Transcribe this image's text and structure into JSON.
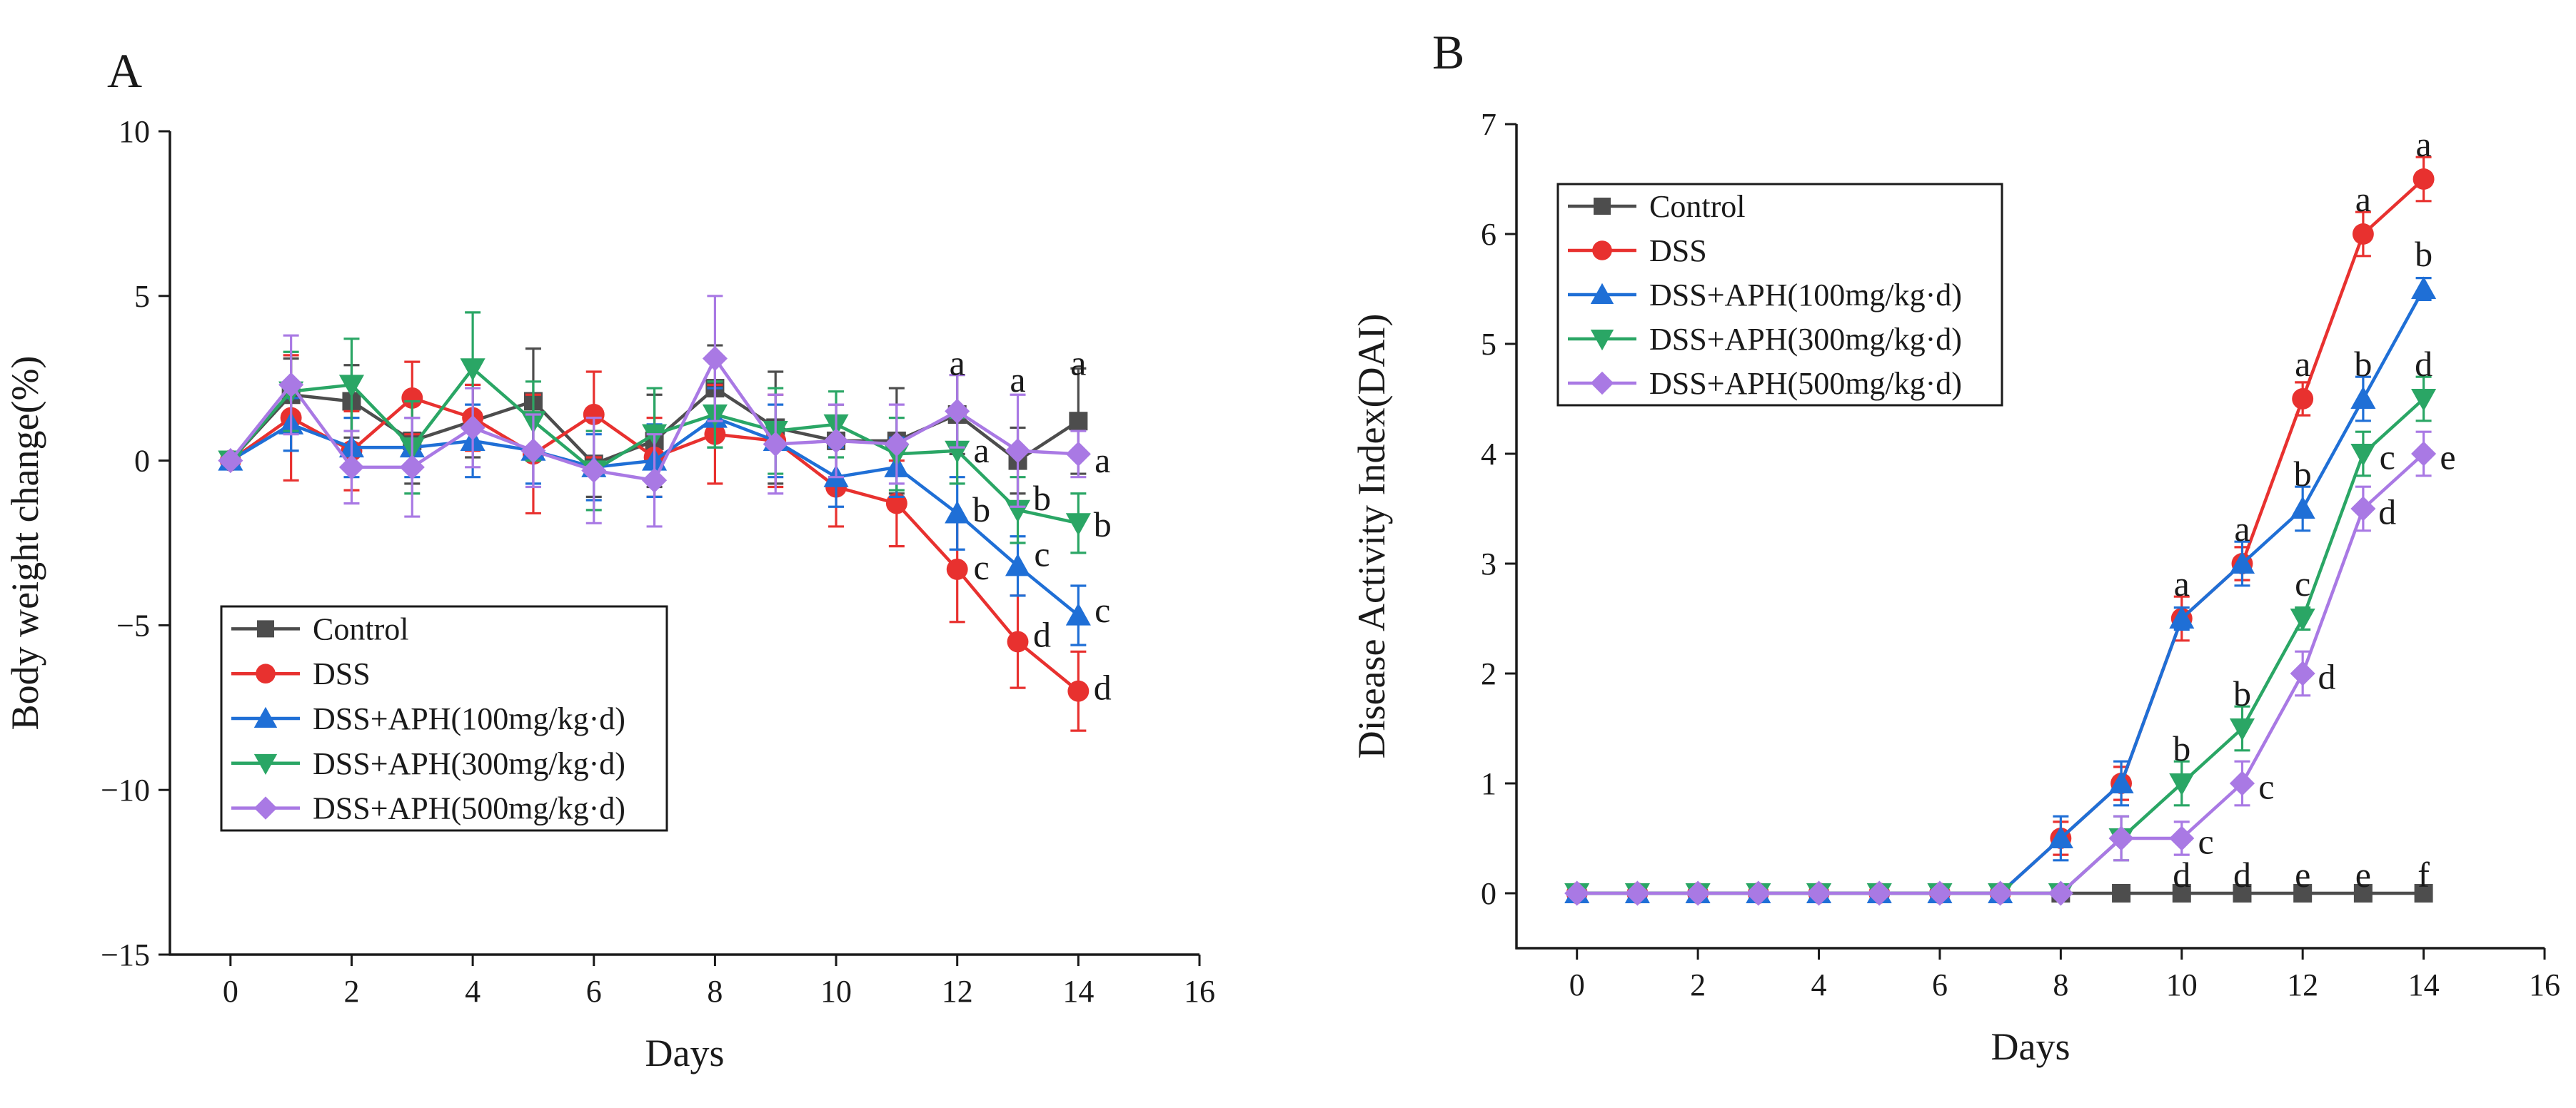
{
  "figure": {
    "colors": {
      "Control": "#4d4d4d",
      "DSS": "#e8312f",
      "DSS+APH(100mg/kg·d)": "#1f6fd6",
      "DSS+APH(300mg/kg·d)": "#2aa665",
      "DSS+APH(500mg/kg·d)": "#a979e4"
    },
    "markers": {
      "Control": "square",
      "DSS": "circle",
      "DSS+APH(100mg/kg·d)": "triangle-up",
      "DSS+APH(300mg/kg·d)": "triangle-down",
      "DSS+APH(500mg/kg·d)": "diamond"
    }
  },
  "chart_data": [
    {
      "panel": "A",
      "type": "line",
      "title": "",
      "xlabel": "Days",
      "ylabel": "Body weight change(%)",
      "xlim": [
        -1,
        16
      ],
      "ylim": [
        -15,
        10
      ],
      "xticks": [
        0,
        2,
        4,
        6,
        8,
        10,
        12,
        14,
        16
      ],
      "yticks": [
        -15,
        -10,
        -5,
        0,
        5,
        10
      ],
      "ytick_labels": [
        "−15",
        "−10",
        "−5",
        "0",
        "5",
        "10"
      ],
      "legend_position": "lower-left",
      "x": [
        0,
        1,
        2,
        3,
        4,
        5,
        6,
        7,
        8,
        9,
        10,
        11,
        12,
        13,
        14
      ],
      "series": [
        {
          "name": "Control",
          "values": [
            0,
            2.0,
            1.8,
            0.6,
            1.2,
            1.8,
            -0.1,
            0.6,
            2.2,
            1.0,
            0.6,
            0.6,
            1.4,
            0.0,
            1.2
          ],
          "errors": [
            0,
            1.1,
            1.1,
            1.3,
            1.1,
            1.6,
            1.0,
            1.4,
            1.3,
            1.7,
            1.1,
            1.6,
            1.2,
            1.0,
            1.6
          ]
        },
        {
          "name": "DSS",
          "values": [
            0,
            1.3,
            0.3,
            1.9,
            1.3,
            0.2,
            1.4,
            0.1,
            0.8,
            0.6,
            -0.8,
            -1.3,
            -3.3,
            -5.5,
            -7.0
          ],
          "errors": [
            0,
            1.9,
            1.2,
            1.1,
            1.0,
            1.8,
            1.3,
            1.2,
            1.5,
            1.4,
            1.2,
            1.3,
            1.6,
            1.4,
            1.2
          ]
        },
        {
          "name": "DSS+APH(100mg/kg·d)",
          "values": [
            0,
            1.1,
            0.4,
            0.4,
            0.6,
            0.3,
            -0.2,
            0.0,
            1.3,
            0.6,
            -0.5,
            -0.2,
            -1.6,
            -3.2,
            -4.7
          ],
          "errors": [
            0,
            0.8,
            0.9,
            0.9,
            1.1,
            1.0,
            1.0,
            1.1,
            0.9,
            1.1,
            0.9,
            0.9,
            1.1,
            0.9,
            0.9
          ]
        },
        {
          "name": "DSS+APH(300mg/kg·d)",
          "values": [
            0,
            2.1,
            2.3,
            0.4,
            2.8,
            1.2,
            -0.3,
            0.8,
            1.4,
            0.9,
            1.1,
            0.2,
            0.3,
            -1.5,
            -1.9
          ],
          "errors": [
            0,
            1.2,
            1.4,
            1.4,
            1.7,
            1.2,
            1.2,
            1.4,
            1.0,
            1.3,
            1.0,
            1.1,
            1.0,
            1.0,
            0.9
          ]
        },
        {
          "name": "DSS+APH(500mg/kg·d)",
          "values": [
            0,
            2.3,
            -0.2,
            -0.2,
            1.0,
            0.3,
            -0.3,
            -0.6,
            3.1,
            0.5,
            0.6,
            0.5,
            1.5,
            0.3,
            0.2
          ],
          "errors": [
            0,
            1.5,
            1.1,
            1.5,
            1.2,
            1.1,
            1.6,
            1.4,
            1.9,
            1.5,
            1.1,
            1.2,
            1.1,
            1.7,
            0.7
          ]
        }
      ],
      "annotations": [
        {
          "text": "a",
          "x": 12,
          "y": 2.9
        },
        {
          "text": "a",
          "x": 13,
          "y": 2.4
        },
        {
          "text": "a",
          "x": 14,
          "y": 2.9
        },
        {
          "text": "a",
          "x": 12.4,
          "y": 0.25
        },
        {
          "text": "a",
          "x": 14.4,
          "y": -0.05
        },
        {
          "text": "b",
          "x": 13.4,
          "y": -1.2
        },
        {
          "text": "b",
          "x": 14.4,
          "y": -2.0
        },
        {
          "text": "b",
          "x": 12.4,
          "y": -1.55
        },
        {
          "text": "c",
          "x": 13.4,
          "y": -2.9
        },
        {
          "text": "c",
          "x": 12.4,
          "y": -3.3
        },
        {
          "text": "c",
          "x": 14.4,
          "y": -4.6
        },
        {
          "text": "d",
          "x": 13.4,
          "y": -5.35
        },
        {
          "text": "d",
          "x": 14.4,
          "y": -6.95
        }
      ]
    },
    {
      "panel": "B",
      "type": "line",
      "title": "",
      "xlabel": "Days",
      "ylabel": "Disease Activity Index(DAI)",
      "xlim": [
        -1,
        16
      ],
      "ylim": [
        -0.5,
        7
      ],
      "xticks": [
        0,
        2,
        4,
        6,
        8,
        10,
        12,
        14,
        16
      ],
      "yticks": [
        0,
        1,
        2,
        3,
        4,
        5,
        6,
        7
      ],
      "ytick_labels": [
        "0",
        "1",
        "2",
        "3",
        "4",
        "5",
        "6",
        "7"
      ],
      "legend_position": "top-left",
      "x": [
        0,
        1,
        2,
        3,
        4,
        5,
        6,
        7,
        8,
        9,
        10,
        11,
        12,
        13,
        14
      ],
      "series": [
        {
          "name": "Control",
          "values": [
            0,
            0,
            0,
            0,
            0,
            0,
            0,
            0,
            0,
            0,
            0,
            0,
            0,
            0,
            0
          ],
          "errors": [
            0,
            0,
            0,
            0,
            0,
            0,
            0,
            0,
            0,
            0,
            0,
            0,
            0,
            0,
            0
          ]
        },
        {
          "name": "DSS",
          "values": [
            0,
            0,
            0,
            0,
            0,
            0,
            0,
            0,
            0.5,
            1.0,
            2.5,
            3.0,
            4.5,
            6.0,
            6.5
          ],
          "errors": [
            0,
            0,
            0,
            0,
            0,
            0,
            0,
            0,
            0.15,
            0.15,
            0.2,
            0.15,
            0.15,
            0.2,
            0.2
          ]
        },
        {
          "name": "DSS+APH(100mg/kg·d)",
          "values": [
            0,
            0,
            0,
            0,
            0,
            0,
            0,
            0,
            0.5,
            1.0,
            2.5,
            3.0,
            3.5,
            4.5,
            5.5
          ],
          "errors": [
            0,
            0,
            0,
            0,
            0,
            0,
            0,
            0,
            0.2,
            0.2,
            0.1,
            0.2,
            0.2,
            0.2,
            0.1
          ]
        },
        {
          "name": "DSS+APH(300mg/kg·d)",
          "values": [
            0,
            0,
            0,
            0,
            0,
            0,
            0,
            0,
            0,
            0.5,
            1.0,
            1.5,
            2.5,
            4.0,
            4.5
          ],
          "errors": [
            0,
            0,
            0,
            0,
            0,
            0,
            0,
            0,
            0,
            0.2,
            0.2,
            0.2,
            0.1,
            0.2,
            0.2
          ]
        },
        {
          "name": "DSS+APH(500mg/kg·d)",
          "values": [
            0,
            0,
            0,
            0,
            0,
            0,
            0,
            0,
            0,
            0.5,
            0.5,
            1.0,
            2.0,
            3.5,
            4.0
          ],
          "errors": [
            0,
            0,
            0,
            0,
            0,
            0,
            0,
            0,
            0,
            0.2,
            0.15,
            0.2,
            0.2,
            0.2,
            0.2
          ]
        }
      ],
      "annotations": [
        {
          "text": "a",
          "x": 14,
          "y": 6.8
        },
        {
          "text": "a",
          "x": 13,
          "y": 6.3
        },
        {
          "text": "b",
          "x": 14,
          "y": 5.8
        },
        {
          "text": "a",
          "x": 12,
          "y": 4.8
        },
        {
          "text": "b",
          "x": 13,
          "y": 4.8
        },
        {
          "text": "d",
          "x": 14,
          "y": 4.8
        },
        {
          "text": "b",
          "x": 12,
          "y": 3.8
        },
        {
          "text": "c",
          "x": 13.4,
          "y": 3.95
        },
        {
          "text": "e",
          "x": 14.4,
          "y": 3.95
        },
        {
          "text": "a",
          "x": 11,
          "y": 3.3
        },
        {
          "text": "d",
          "x": 13.4,
          "y": 3.45
        },
        {
          "text": "a",
          "x": 10,
          "y": 2.8
        },
        {
          "text": "c",
          "x": 12,
          "y": 2.8
        },
        {
          "text": "d",
          "x": 12.4,
          "y": 1.95
        },
        {
          "text": "b",
          "x": 11,
          "y": 1.8
        },
        {
          "text": "b",
          "x": 10,
          "y": 1.3
        },
        {
          "text": "c",
          "x": 11.4,
          "y": 0.95
        },
        {
          "text": "c",
          "x": 10.4,
          "y": 0.45
        },
        {
          "text": "d",
          "x": 10,
          "y": 0.15
        },
        {
          "text": "d",
          "x": 11,
          "y": 0.15
        },
        {
          "text": "e",
          "x": 12,
          "y": 0.15
        },
        {
          "text": "e",
          "x": 13,
          "y": 0.15
        },
        {
          "text": "f",
          "x": 14,
          "y": 0.15
        }
      ]
    }
  ]
}
